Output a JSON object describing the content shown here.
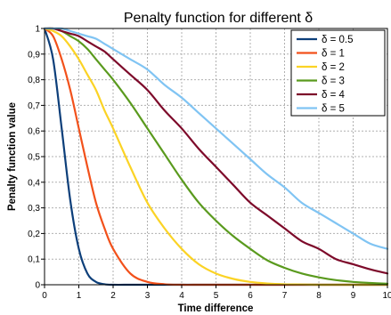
{
  "chart_data": {
    "type": "line",
    "title": "Penalty function for different δ",
    "xlabel": "Time difference",
    "ylabel": "Penalty function value",
    "xlim": [
      0,
      10
    ],
    "ylim": [
      0,
      1
    ],
    "grid": true,
    "legend_position": "top-right",
    "x_ticks": [
      "0",
      "1",
      "2",
      "3",
      "4",
      "5",
      "6",
      "7",
      "8",
      "9",
      "10"
    ],
    "y_ticks": [
      "0",
      "0,1",
      "0,2",
      "0,3",
      "0,4",
      "0,5",
      "0,6",
      "0,7",
      "0,8",
      "0,9",
      "1"
    ],
    "x": [
      0,
      0.25,
      0.5,
      0.75,
      1,
      1.25,
      1.5,
      1.75,
      2,
      2.5,
      3,
      3.5,
      4,
      4.5,
      5,
      5.5,
      6,
      6.5,
      7,
      7.5,
      8,
      8.5,
      9,
      9.5,
      10
    ],
    "series": [
      {
        "name": "δ = 0.5",
        "color": "#0d3f7a",
        "values": [
          1,
          0.88,
          0.61,
          0.33,
          0.14,
          0.044,
          0.011,
          0.002,
          0,
          0,
          0,
          0,
          0,
          0,
          0,
          0,
          0,
          0,
          0,
          0,
          0,
          0,
          0,
          0,
          0
        ]
      },
      {
        "name": "δ = 1",
        "color": "#f2511b",
        "values": [
          1,
          0.97,
          0.88,
          0.76,
          0.61,
          0.46,
          0.32,
          0.22,
          0.14,
          0.044,
          0.011,
          0.002,
          0,
          0,
          0,
          0,
          0,
          0,
          0,
          0,
          0,
          0,
          0,
          0,
          0
        ]
      },
      {
        "name": "δ = 2",
        "color": "#fbd325",
        "values": [
          1,
          0.99,
          0.97,
          0.93,
          0.88,
          0.82,
          0.76,
          0.68,
          0.61,
          0.46,
          0.32,
          0.22,
          0.14,
          0.08,
          0.044,
          0.023,
          0.011,
          0.005,
          0.002,
          0.001,
          0,
          0,
          0,
          0,
          0
        ]
      },
      {
        "name": "δ = 3",
        "color": "#5a9a1e",
        "values": [
          1,
          1,
          0.99,
          0.97,
          0.95,
          0.92,
          0.88,
          0.84,
          0.8,
          0.71,
          0.61,
          0.51,
          0.41,
          0.32,
          0.25,
          0.19,
          0.14,
          0.095,
          0.066,
          0.044,
          0.029,
          0.018,
          0.011,
          0.007,
          0.004
        ]
      },
      {
        "name": "δ = 4",
        "color": "#7d0a2a",
        "values": [
          1,
          1,
          0.99,
          0.98,
          0.97,
          0.95,
          0.93,
          0.91,
          0.88,
          0.82,
          0.76,
          0.68,
          0.61,
          0.53,
          0.46,
          0.39,
          0.32,
          0.27,
          0.22,
          0.17,
          0.14,
          0.1,
          0.08,
          0.06,
          0.044
        ]
      },
      {
        "name": "δ = 5",
        "color": "#80c4f3",
        "values": [
          1,
          1,
          1,
          0.99,
          0.98,
          0.97,
          0.96,
          0.94,
          0.92,
          0.88,
          0.84,
          0.78,
          0.73,
          0.67,
          0.61,
          0.55,
          0.49,
          0.43,
          0.38,
          0.32,
          0.28,
          0.24,
          0.2,
          0.16,
          0.14
        ]
      }
    ]
  }
}
